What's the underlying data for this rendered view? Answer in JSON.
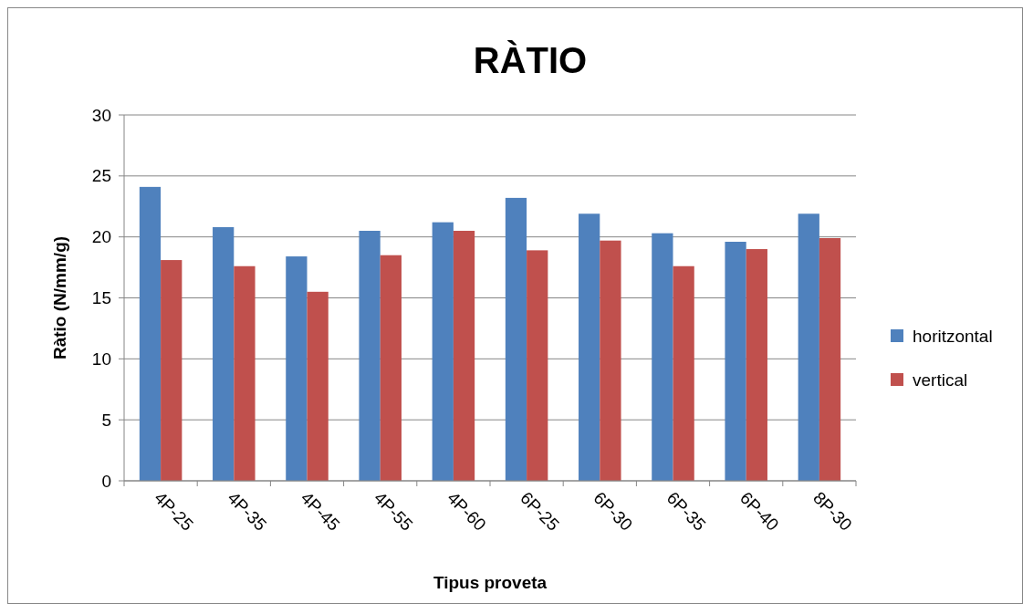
{
  "chart_data": {
    "type": "bar",
    "title": "RÀTIO",
    "xlabel": "Tipus proveta",
    "ylabel": "Ràtio (N/mm/g)",
    "categories": [
      "4P-25",
      "4P-35",
      "4P-45",
      "4P-55",
      "4P-60",
      "6P-25",
      "6P-30",
      "6P-35",
      "6P-40",
      "8P-30"
    ],
    "series": [
      {
        "name": "horitzontal",
        "color": "#4f81bd",
        "values": [
          24.1,
          20.8,
          18.4,
          20.5,
          21.2,
          23.2,
          21.9,
          20.3,
          19.6,
          21.9
        ]
      },
      {
        "name": "vertical",
        "color": "#c0504d",
        "values": [
          18.1,
          17.6,
          15.5,
          18.5,
          20.5,
          18.9,
          19.7,
          17.6,
          19.0,
          19.9
        ]
      }
    ],
    "ylim": [
      0,
      30
    ],
    "yticks": [
      0,
      5,
      10,
      15,
      20,
      25,
      30
    ],
    "grid": "y",
    "legend": "right"
  }
}
